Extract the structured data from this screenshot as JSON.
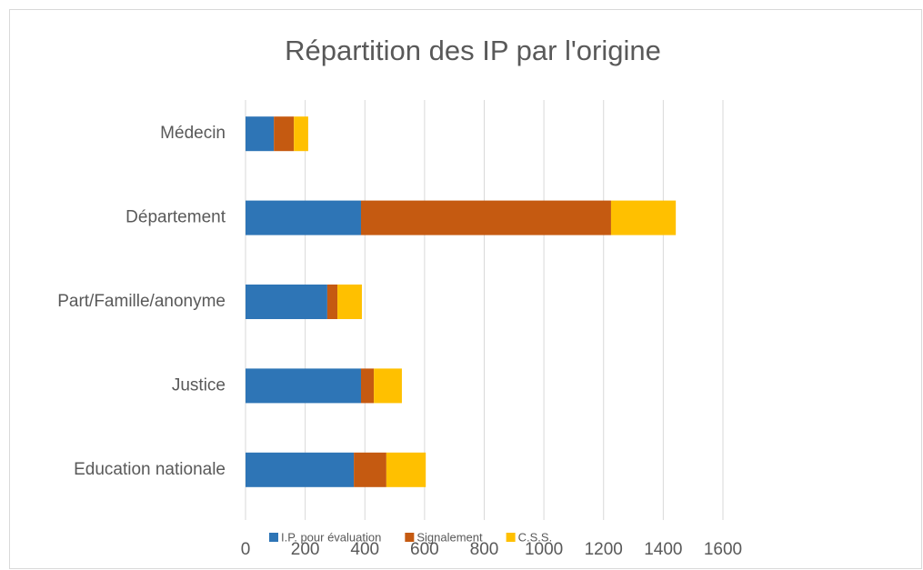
{
  "chart_data": {
    "type": "stacked-barh",
    "title": "Répartition des IP par l'origine",
    "categories": [
      "Médecin",
      "Département",
      "Part/Famille/anonyme",
      "Justice",
      "Education nationale"
    ],
    "series": [
      {
        "name": "I.P. pour évaluation",
        "color": "#2e75b6",
        "values": [
          95,
          387,
          274,
          387,
          363
        ]
      },
      {
        "name": "Signalement",
        "color": "#c55a11",
        "values": [
          67,
          838,
          34,
          43,
          109
        ]
      },
      {
        "name": "C.S.S.",
        "color": "#ffc000",
        "values": [
          48,
          217,
          82,
          94,
          132
        ]
      }
    ],
    "xlim": [
      0,
      1600
    ],
    "xticks": [
      0,
      200,
      400,
      600,
      800,
      1000,
      1200,
      1400,
      1600
    ],
    "grid": true,
    "legend": "bottom"
  }
}
